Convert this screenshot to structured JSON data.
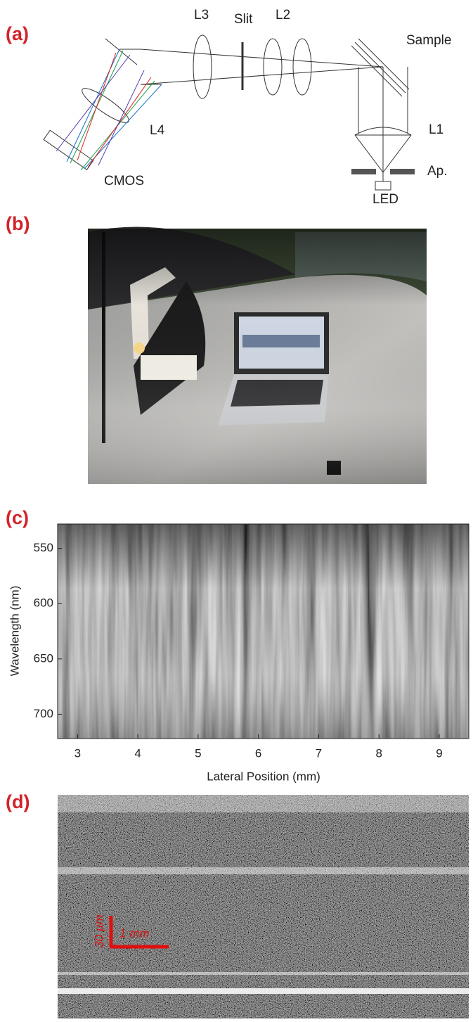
{
  "panels": {
    "a": {
      "label": "(a)",
      "components": [
        "L3",
        "Slit",
        "L2",
        "Sample",
        "L4",
        "L1",
        "CMOS",
        "Ap.",
        "LED"
      ]
    },
    "b": {
      "label": "(b)"
    },
    "c": {
      "label": "(c)",
      "xlabel": "Lateral Position (mm)",
      "ylabel": "Wavelength (nm)",
      "xlim": [
        2.67,
        9.49
      ],
      "xticks": [
        3,
        4,
        5,
        6,
        7,
        8,
        9
      ],
      "ylim": [
        528,
        722
      ],
      "y_reversed": true,
      "yticks": [
        550,
        600,
        650,
        700
      ]
    },
    "d": {
      "label": "(d)",
      "scale_x": "1 mm",
      "scale_y": "30 µm"
    }
  }
}
